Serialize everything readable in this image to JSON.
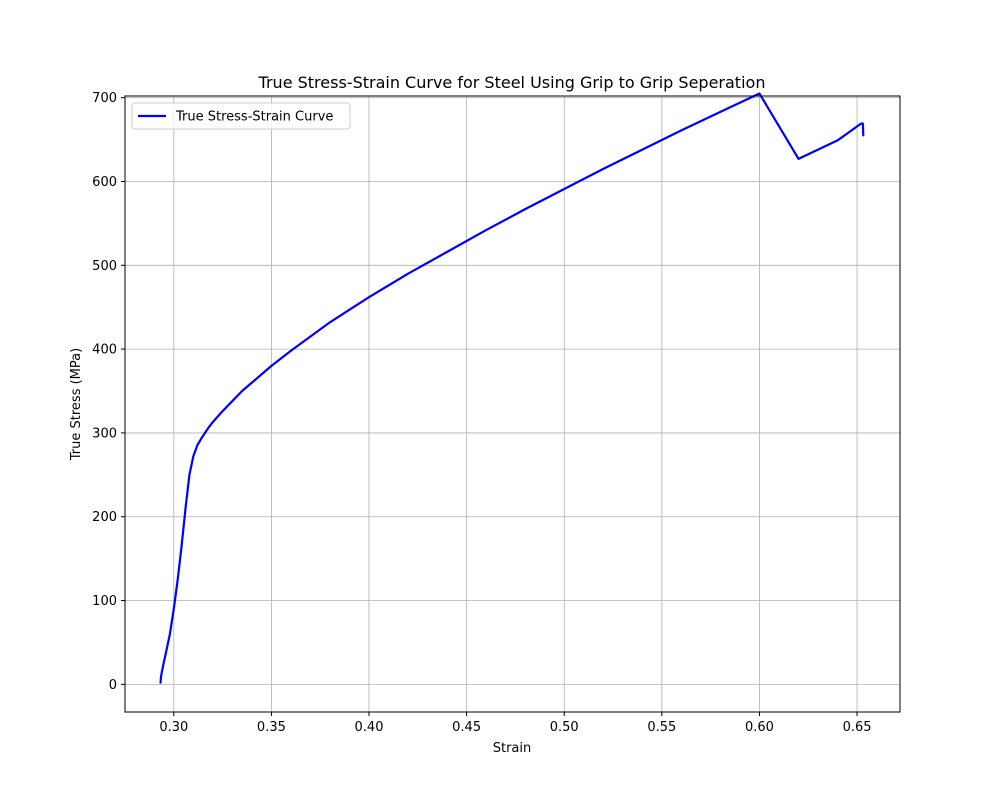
{
  "chart_data": {
    "type": "line",
    "title": "True Stress-Strain Curve for Steel Using Grip to Grip Seperation",
    "xlabel": "Strain",
    "ylabel": "True Stress (MPa)",
    "xlim": [
      0.275,
      0.672
    ],
    "ylim": [
      -33,
      702
    ],
    "xticks": [
      0.3,
      0.35,
      0.4,
      0.45,
      0.5,
      0.55,
      0.6,
      0.65
    ],
    "xtick_labels": [
      "0.30",
      "0.35",
      "0.40",
      "0.45",
      "0.50",
      "0.55",
      "0.60",
      "0.65"
    ],
    "yticks": [
      0,
      100,
      200,
      300,
      400,
      500,
      600,
      700
    ],
    "ytick_labels": [
      "0",
      "100",
      "200",
      "300",
      "400",
      "500",
      "600",
      "700"
    ],
    "grid": true,
    "legend_position": "upper-left",
    "series": [
      {
        "name": "True Stress-Strain Curve",
        "color": "#0000ff",
        "x": [
          0.2932,
          0.2935,
          0.2945,
          0.296,
          0.298,
          0.3,
          0.302,
          0.304,
          0.306,
          0.308,
          0.31,
          0.312,
          0.314,
          0.316,
          0.318,
          0.32,
          0.325,
          0.33,
          0.335,
          0.34,
          0.35,
          0.36,
          0.37,
          0.38,
          0.39,
          0.4,
          0.42,
          0.44,
          0.46,
          0.48,
          0.5,
          0.52,
          0.54,
          0.56,
          0.58,
          0.6,
          0.62,
          0.64,
          0.652,
          0.653,
          0.6532
        ],
        "y": [
          2,
          10,
          22,
          38,
          60,
          90,
          125,
          165,
          210,
          250,
          272,
          285,
          293,
          300,
          307,
          313,
          326,
          338,
          350,
          360,
          380,
          398,
          415,
          432,
          447,
          462,
          490,
          516,
          542,
          567,
          591,
          615,
          638,
          661,
          683,
          705,
          627,
          649,
          669,
          669,
          655
        ]
      }
    ]
  }
}
